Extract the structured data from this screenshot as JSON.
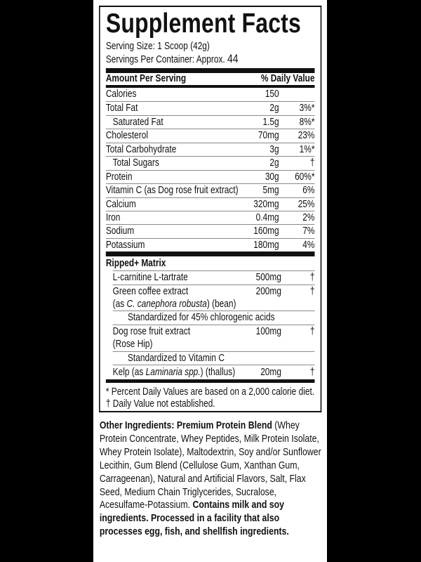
{
  "title": "Supplement Facts",
  "serving_size": "Serving Size: 1 Scoop (42g)",
  "servings_per_container_label": "Servings Per Container: Approx.",
  "servings_per_container_value": "44",
  "header": {
    "amount": "Amount Per Serving",
    "dv": "% Daily Value"
  },
  "nutrients": [
    {
      "name": "Calories",
      "amount": "150",
      "dv": ""
    },
    {
      "name": "Total Fat",
      "amount": "2g",
      "dv": "3%*"
    },
    {
      "name": "Saturated Fat",
      "amount": "1.5g",
      "dv": "8%*"
    },
    {
      "name": "Cholesterol",
      "amount": "70mg",
      "dv": "23%"
    },
    {
      "name": "Total Carbohydrate",
      "amount": "3g",
      "dv": "1%*"
    },
    {
      "name": "Total Sugars",
      "amount": "2g",
      "dv": "†"
    },
    {
      "name": "Protein",
      "amount": "30g",
      "dv": "60%*"
    },
    {
      "name": "Vitamin C (as Dog rose fruit extract)",
      "amount": "5mg",
      "dv": "6%"
    },
    {
      "name": "Calcium",
      "amount": "320mg",
      "dv": "25%"
    },
    {
      "name": "Iron",
      "amount": "0.4mg",
      "dv": "2%"
    },
    {
      "name": "Sodium",
      "amount": "160mg",
      "dv": "7%"
    },
    {
      "name": "Potassium",
      "amount": "180mg",
      "dv": "4%"
    }
  ],
  "matrix": {
    "title": "Ripped+ Matrix",
    "items": [
      {
        "name": "L-carnitine L-tartrate",
        "amount": "500mg",
        "dv": "†"
      },
      {
        "name": "Green coffee extract",
        "name2_pre": "(as ",
        "name2_italic": "C. canephora robusta",
        "name2_post": ") (bean)",
        "amount": "200mg",
        "dv": "†"
      },
      {
        "name": "Standardized for 45% chlorogenic acids"
      },
      {
        "name": "Dog rose fruit extract",
        "name2": "(Rose Hip)",
        "amount": "100mg",
        "dv": "†"
      },
      {
        "name": "Standardized to Vitamin C"
      },
      {
        "name_pre": "Kelp (as ",
        "name_italic": "Laminaria spp.",
        "name_post": ") (thallus)",
        "amount": "20mg",
        "dv": "†"
      }
    ]
  },
  "footnotes": [
    "* Percent Daily Values are based on a 2,000 calorie diet.",
    "† Daily Value not established."
  ],
  "other_ingredients": {
    "label": "Other Ingredients:",
    "blend": "Premium Protein Blend",
    "text": "(Whey Protein Concentrate, Whey Peptides, Milk Protein Isolate, Whey Protein Isolate),  Maltodextrin, Soy and/or Sunflower Lecithin, Gum Blend (Cellulose Gum, Xanthan Gum, Carrageenan), Natural and Artificial Flavors, Salt, Flax Seed, Medium Chain Triglycerides, Sucralose, Acesulfame-Potassium.",
    "allergen": "Contains milk and soy ingredients. Processed in a facility that also processes egg, fish, and shellfish ingredients."
  }
}
